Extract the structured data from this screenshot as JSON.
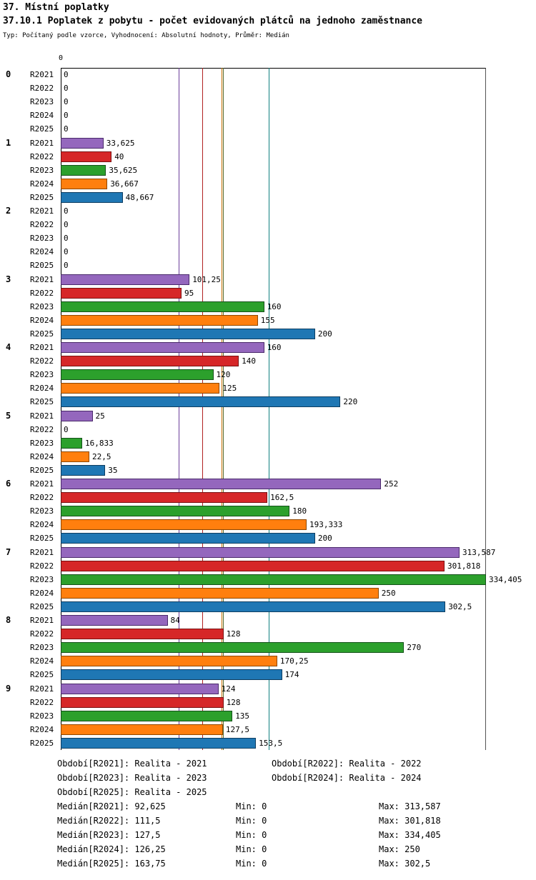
{
  "header": {
    "title": "37. Místní poplatky",
    "subtitle": "37.10.1 Poplatek z pobytu - počet evidovaných plátců na jednoho zaměstnance",
    "meta": "Typ: Počítaný podle vzorce, Vyhodnocení: Absolutní hodnoty, Průměr: Medián"
  },
  "chart_data": {
    "type": "bar",
    "orientation": "horizontal",
    "title": "37.10.1 Poplatek z pobytu - počet evidovaných plátců na jednoho zaměstnance",
    "xlabel": "",
    "ylabel": "",
    "axis": {
      "min": 0,
      "max": 334.405,
      "origin_tick_label": "0"
    },
    "grid": false,
    "legend_position": "bottom",
    "categories": [
      "0",
      "1",
      "2",
      "3",
      "4",
      "5",
      "6",
      "7",
      "8",
      "9"
    ],
    "series": [
      {
        "name": "R2021",
        "color": "#9467bd",
        "border_color": "#4a2a6b",
        "median": 92.625,
        "median_line_color": "#6a3d9a",
        "values": [
          0,
          33.625,
          0,
          101.25,
          160,
          25,
          252,
          313.587,
          84,
          124
        ],
        "value_labels": [
          "0",
          "33,625",
          "0",
          "101,25",
          "160",
          "25",
          "252",
          "313,587",
          "84",
          "124"
        ]
      },
      {
        "name": "R2022",
        "color": "#d62728",
        "border_color": "#7a1010",
        "median": 111.5,
        "median_line_color": "#b22222",
        "values": [
          0,
          40,
          0,
          95,
          140,
          0,
          162.5,
          301.818,
          128,
          128
        ],
        "value_labels": [
          "0",
          "40",
          "0",
          "95",
          "140",
          "0",
          "162,5",
          "301,818",
          "128",
          "128"
        ]
      },
      {
        "name": "R2023",
        "color": "#2ca02c",
        "border_color": "#14521a",
        "median": 127.5,
        "median_line_color": "#556b2f",
        "values": [
          0,
          35.625,
          0,
          160,
          120,
          16.833,
          180,
          334.405,
          270,
          135
        ],
        "value_labels": [
          "0",
          "35,625",
          "0",
          "160",
          "120",
          "16,833",
          "180",
          "334,405",
          "270",
          "135"
        ]
      },
      {
        "name": "R2024",
        "color": "#ff7f0e",
        "border_color": "#8f4700",
        "median": 126.25,
        "median_line_color": "#cc7000",
        "values": [
          0,
          36.667,
          0,
          155,
          125,
          22.5,
          193.333,
          250,
          170.25,
          127.5
        ],
        "value_labels": [
          "0",
          "36,667",
          "0",
          "155",
          "125",
          "22,5",
          "193,333",
          "250",
          "170,25",
          "127,5"
        ]
      },
      {
        "name": "R2025",
        "color": "#1f77b4",
        "border_color": "#0d3d61",
        "median": 163.75,
        "median_line_color": "#0f7f7f",
        "values": [
          0,
          48.667,
          0,
          200,
          220,
          35,
          200,
          302.5,
          174,
          153.5
        ],
        "value_labels": [
          "0",
          "48,667",
          "0",
          "200",
          "220",
          "35",
          "200",
          "302,5",
          "174",
          "153,5"
        ]
      }
    ]
  },
  "footer": {
    "periods": [
      [
        "Období[R2021]: Realita - 2021",
        "Období[R2022]: Realita - 2022"
      ],
      [
        "Období[R2023]: Realita - 2023",
        "Období[R2024]: Realita - 2024"
      ],
      [
        "Období[R2025]: Realita - 2025",
        ""
      ]
    ],
    "stats": [
      {
        "median": "Medián[R2021]: 92,625",
        "min": "Min: 0",
        "max": "Max: 313,587"
      },
      {
        "median": "Medián[R2022]: 111,5",
        "min": "Min: 0",
        "max": "Max: 301,818"
      },
      {
        "median": "Medián[R2023]: 127,5",
        "min": "Min: 0",
        "max": "Max: 334,405"
      },
      {
        "median": "Medián[R2024]: 126,25",
        "min": "Min: 0",
        "max": "Max: 250"
      },
      {
        "median": "Medián[R2025]: 163,75",
        "min": "Min: 0",
        "max": "Max: 302,5"
      }
    ]
  }
}
